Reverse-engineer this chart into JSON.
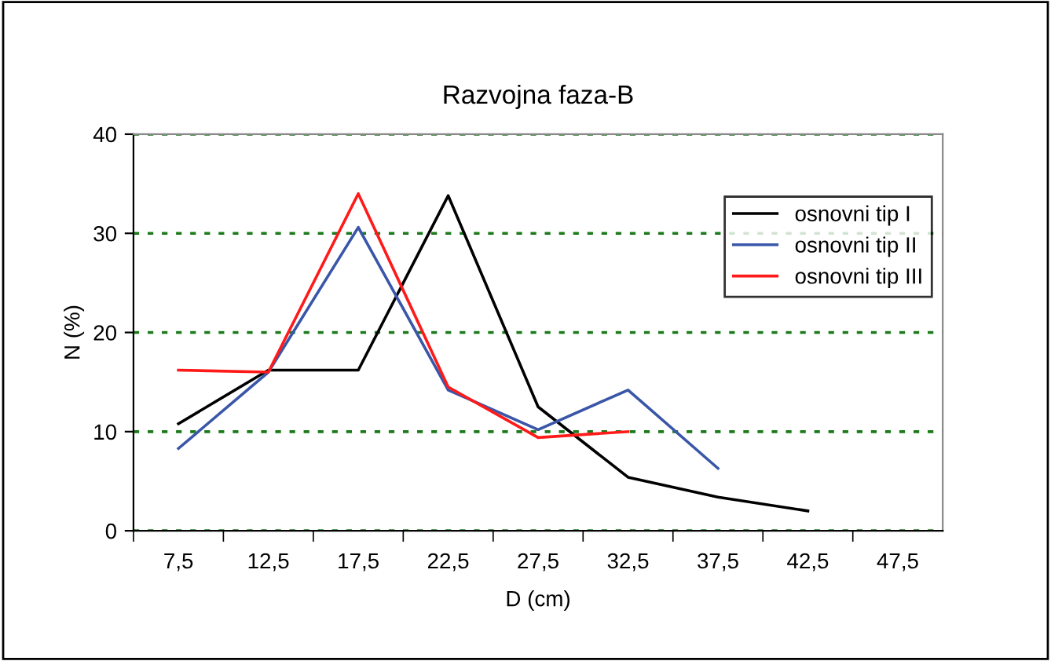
{
  "chart_data": {
    "type": "line",
    "title": "Razvojna faza-B",
    "xlabel": "D (cm)",
    "ylabel": "N (%)",
    "categories": [
      "7,5",
      "12,5",
      "17,5",
      "22,5",
      "27,5",
      "32,5",
      "37,5",
      "42,5",
      "47,5"
    ],
    "series": [
      {
        "name": "osnovni tip I",
        "color": "#000000",
        "values": [
          10.8,
          16.2,
          16.2,
          33.8,
          12.5,
          5.4,
          3.4,
          2.0,
          null
        ]
      },
      {
        "name": "osnovni tip II",
        "color": "#3a56a8",
        "values": [
          8.3,
          16.0,
          30.6,
          14.2,
          10.2,
          14.2,
          6.3,
          null,
          null
        ]
      },
      {
        "name": "osnovni tip III",
        "color": "#ff1a1a",
        "values": [
          16.2,
          16.0,
          34.0,
          14.5,
          9.4,
          10.0,
          null,
          null,
          null
        ]
      }
    ],
    "ylim": [
      0,
      40
    ],
    "yticks": [
      0,
      10,
      20,
      30,
      40
    ],
    "grid": "y",
    "legend": "top right",
    "marker": "none",
    "line_style": "solid"
  }
}
